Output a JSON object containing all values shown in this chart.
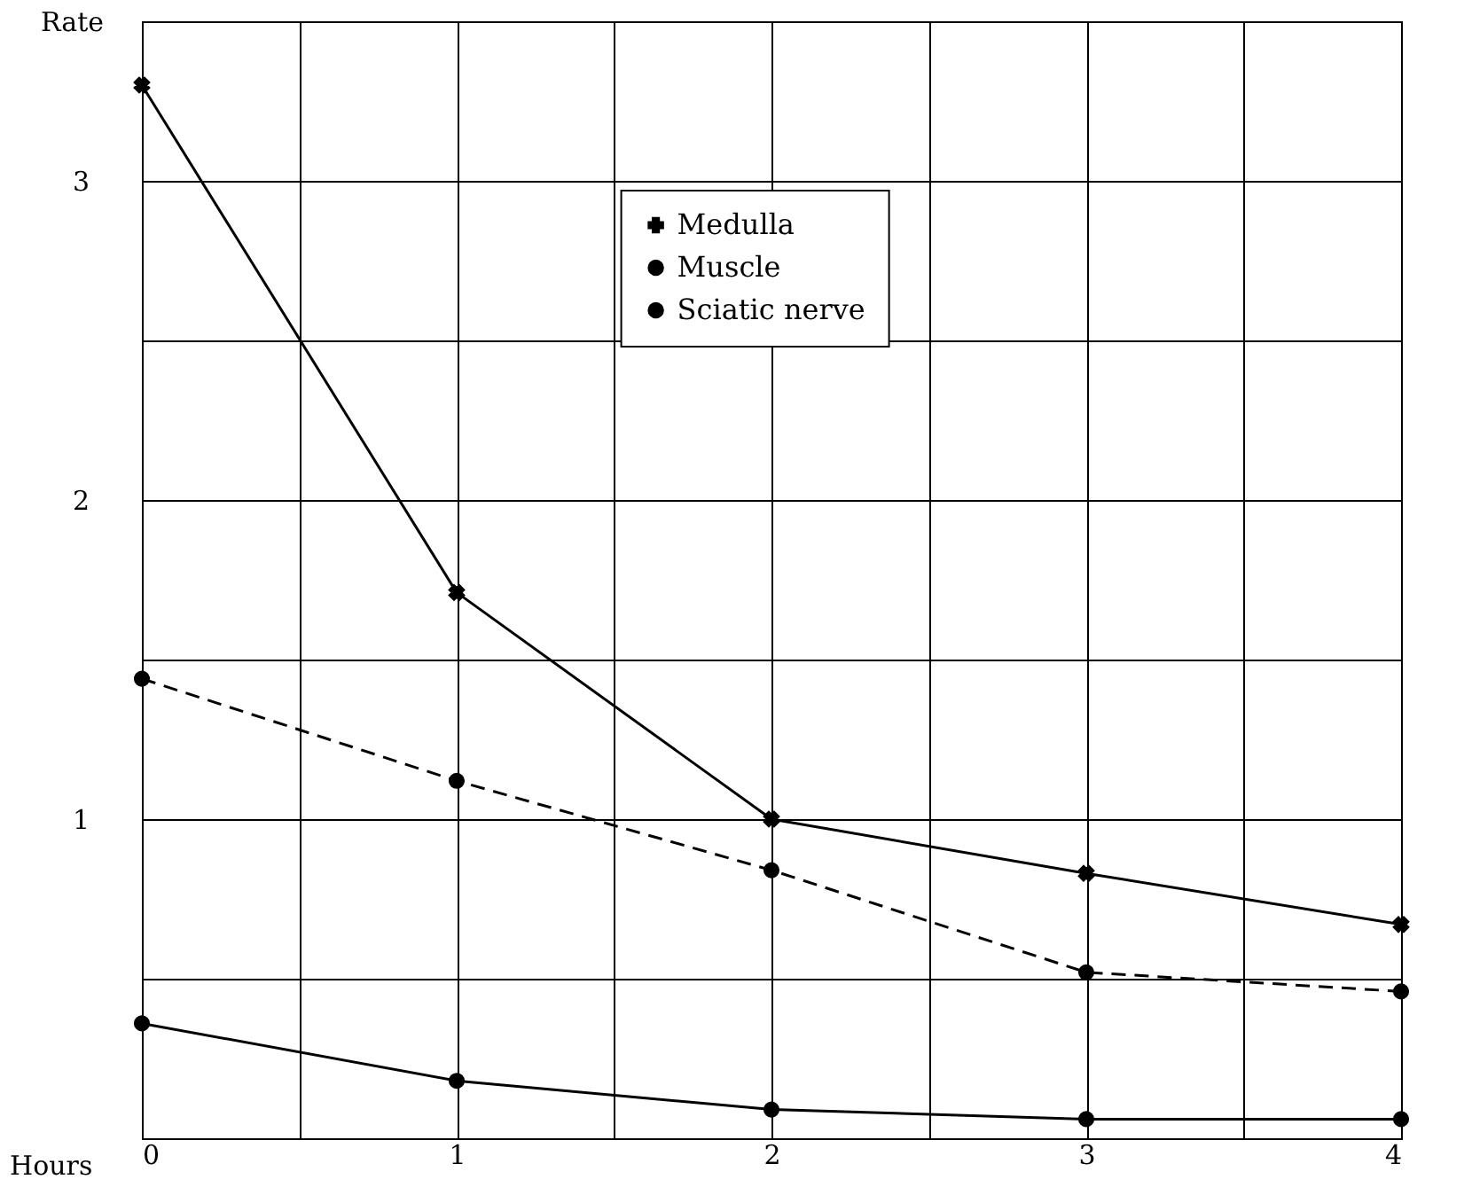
{
  "chart_data": {
    "type": "line",
    "xlabel": "Hours",
    "ylabel": "Rate",
    "x": [
      0,
      1,
      2,
      3,
      4
    ],
    "series": [
      {
        "name": "Medulla",
        "color": "#000000",
        "marker": "cross",
        "line_style": "solid",
        "values": [
          3.3,
          1.71,
          1.0,
          0.83,
          0.67
        ]
      },
      {
        "name": "Muscle",
        "color": "#000000",
        "marker": "circle",
        "line_style": "dashed",
        "values": [
          1.44,
          1.12,
          0.84,
          0.52,
          0.46
        ]
      },
      {
        "name": "Sciatic nerve",
        "color": "#000000",
        "marker": "circle",
        "line_style": "solid",
        "values": [
          0.36,
          0.18,
          0.09,
          0.06,
          0.06
        ]
      }
    ],
    "xlim": [
      0,
      4
    ],
    "ylim": [
      0,
      3.5
    ],
    "xticks": [
      0,
      {
        "value": 0.5,
        "label": null
      },
      1,
      {
        "value": 1.5,
        "label": null
      },
      2,
      {
        "value": 2.5,
        "label": null
      },
      3,
      {
        "value": 3.5,
        "label": null
      },
      4
    ],
    "yticks": [
      {
        "value": 0,
        "label": null
      },
      {
        "value": 0.5,
        "label": null
      },
      1,
      {
        "value": 1.5,
        "label": null
      },
      2,
      {
        "value": 2.5,
        "label": null
      },
      3,
      {
        "value": 3.5,
        "label": null
      }
    ],
    "grid": true,
    "legend": "top"
  }
}
